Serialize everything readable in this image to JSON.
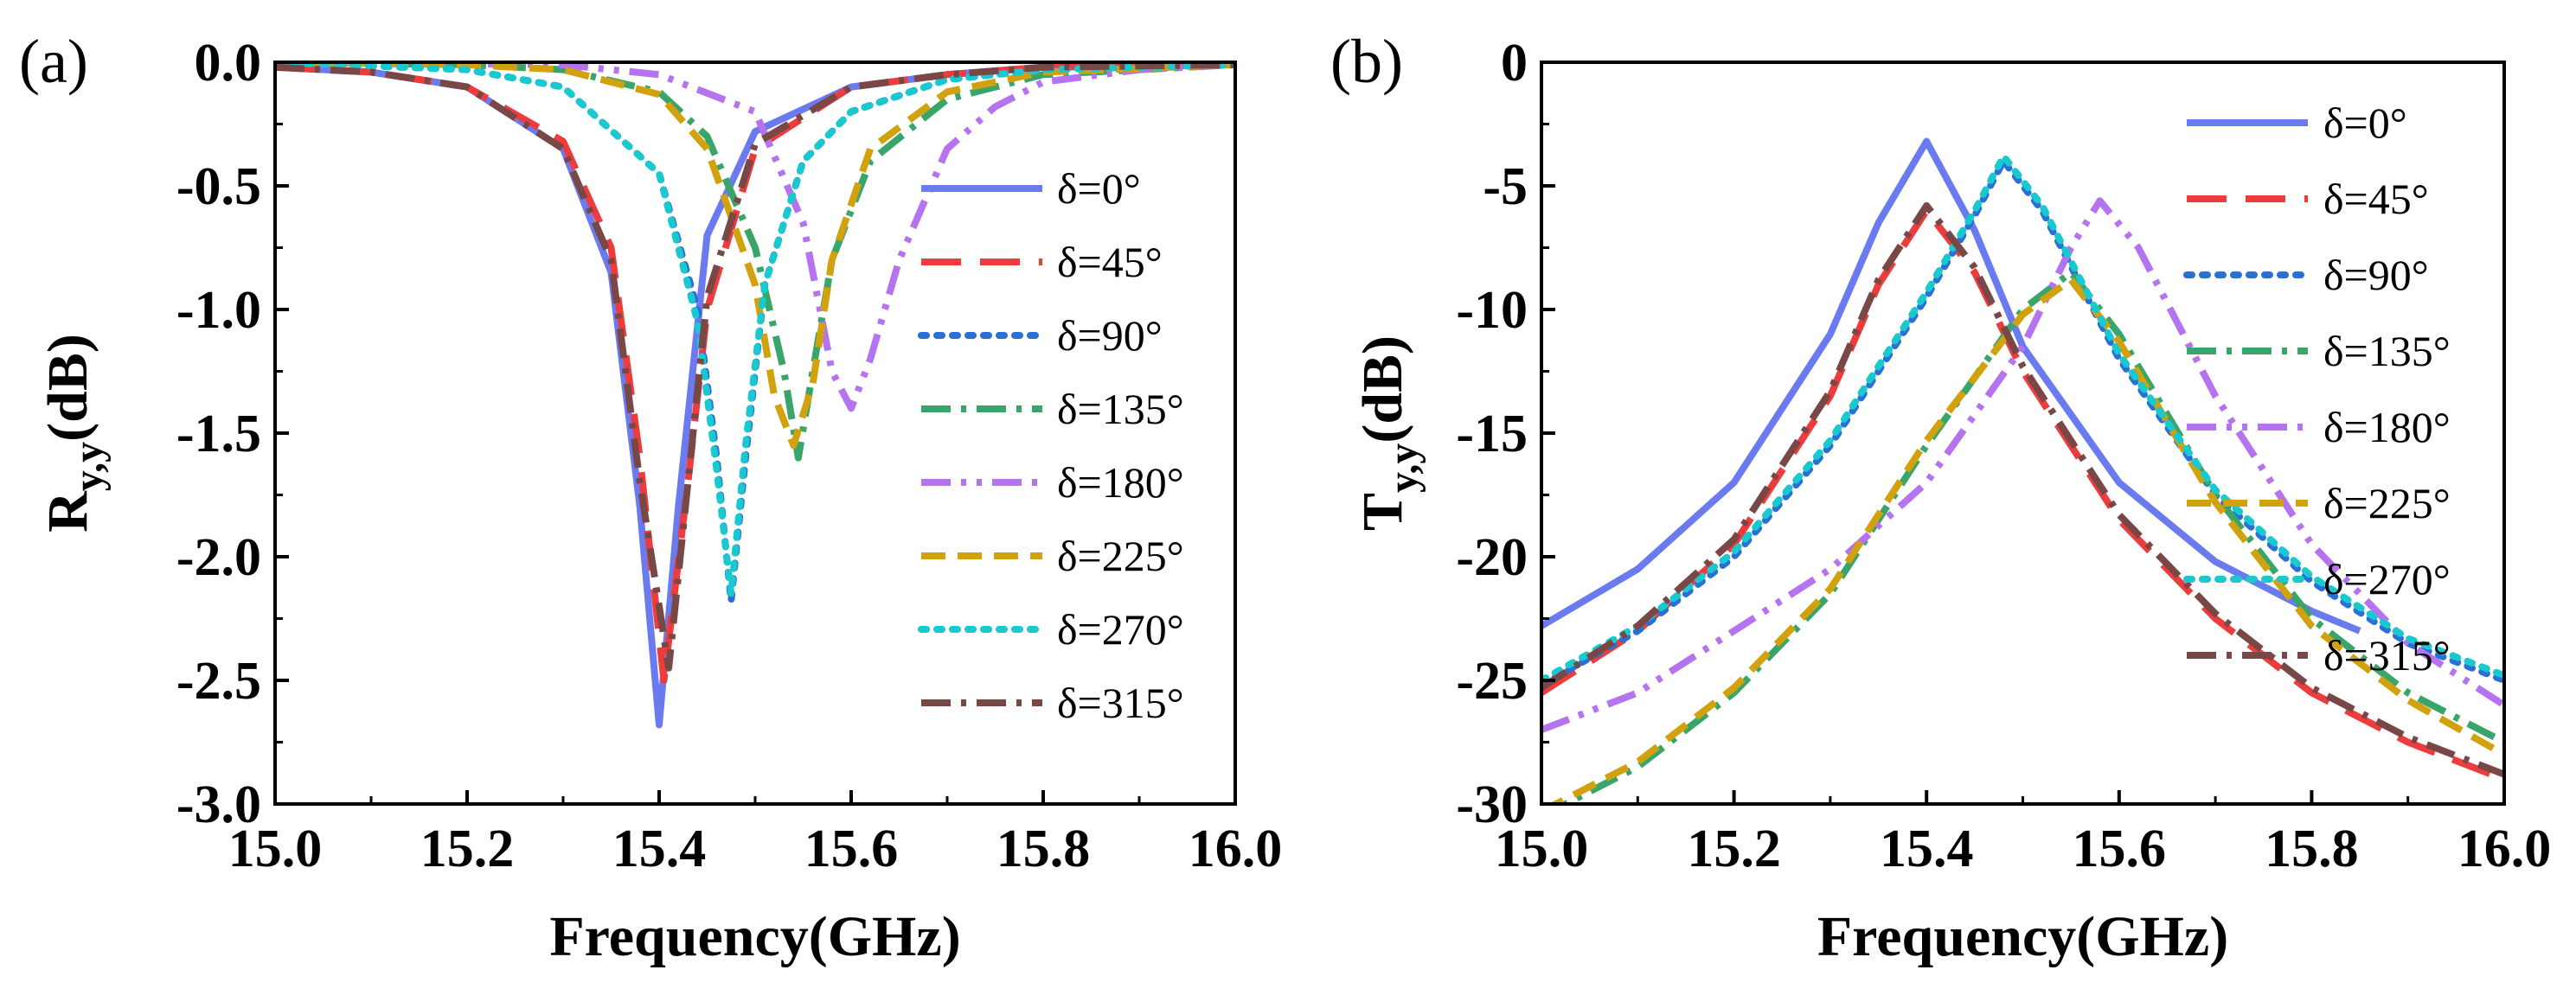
{
  "chart_data": [
    {
      "type": "line",
      "panel_label": "(a)",
      "xlabel": "Frequency(GHz)",
      "ylabel": "R",
      "ylabel_sub": "y,y",
      "ylabel_unit": "(dB)",
      "xlim": [
        15.0,
        16.0
      ],
      "ylim": [
        -3.0,
        0.0
      ],
      "xticks": [
        15.0,
        15.2,
        15.4,
        15.6,
        15.8,
        16.0
      ],
      "xtick_labels": [
        "15.0",
        "15.2",
        "15.4",
        "15.6",
        "15.8",
        "16.0"
      ],
      "yticks": [
        0.0,
        -0.5,
        -1.0,
        -1.5,
        -2.0,
        -2.5,
        -3.0
      ],
      "ytick_labels": [
        "0.0",
        "-0.5",
        "-1.0",
        "-1.5",
        "-2.0",
        "-2.5",
        "-3.0"
      ],
      "grid": false,
      "legend": "right",
      "series": [
        {
          "name": "δ=0°",
          "color": "#6a7bef",
          "dash": "solid",
          "x": [
            15.0,
            15.1,
            15.2,
            15.3,
            15.35,
            15.38,
            15.4,
            15.42,
            15.45,
            15.5,
            15.6,
            15.7,
            15.8,
            16.0
          ],
          "y": [
            -0.02,
            -0.04,
            -0.1,
            -0.35,
            -0.85,
            -1.8,
            -2.68,
            -1.8,
            -0.7,
            -0.28,
            -0.1,
            -0.05,
            -0.02,
            -0.01
          ]
        },
        {
          "name": "δ=45°",
          "color": "#ee3b3b",
          "dash": "long",
          "x": [
            15.0,
            15.1,
            15.2,
            15.3,
            15.35,
            15.38,
            15.405,
            15.43,
            15.45,
            15.5,
            15.6,
            15.7,
            15.8,
            16.0
          ],
          "y": [
            -0.02,
            -0.04,
            -0.1,
            -0.32,
            -0.75,
            -1.6,
            -2.5,
            -1.7,
            -1.0,
            -0.35,
            -0.1,
            -0.05,
            -0.02,
            -0.01
          ]
        },
        {
          "name": "δ=90°",
          "color": "#2a6fd6",
          "dash": "dot",
          "x": [
            15.0,
            15.2,
            15.3,
            15.4,
            15.44,
            15.46,
            15.475,
            15.49,
            15.51,
            15.55,
            15.6,
            15.7,
            15.8,
            16.0
          ],
          "y": [
            0.0,
            -0.03,
            -0.1,
            -0.45,
            -1.0,
            -1.6,
            -2.18,
            -1.6,
            -0.9,
            -0.4,
            -0.2,
            -0.07,
            -0.03,
            -0.01
          ]
        },
        {
          "name": "δ=135°",
          "color": "#3aa56a",
          "dash": "dashdot",
          "x": [
            15.0,
            15.2,
            15.3,
            15.4,
            15.45,
            15.5,
            15.53,
            15.545,
            15.56,
            15.58,
            15.62,
            15.7,
            15.8,
            16.0
          ],
          "y": [
            0.0,
            -0.01,
            -0.03,
            -0.12,
            -0.3,
            -0.75,
            -1.25,
            -1.6,
            -1.25,
            -0.8,
            -0.4,
            -0.15,
            -0.05,
            -0.01
          ]
        },
        {
          "name": "δ=180°",
          "color": "#b673f0",
          "dash": "dashdotdot",
          "x": [
            15.0,
            15.3,
            15.4,
            15.5,
            15.55,
            15.58,
            15.6,
            15.62,
            15.65,
            15.7,
            15.75,
            15.8,
            15.9,
            16.0
          ],
          "y": [
            0.0,
            -0.01,
            -0.05,
            -0.2,
            -0.65,
            -1.25,
            -1.4,
            -1.2,
            -0.8,
            -0.35,
            -0.18,
            -0.08,
            -0.03,
            -0.01
          ]
        },
        {
          "name": "δ=225°",
          "color": "#d1a20d",
          "dash": "dash",
          "x": [
            15.0,
            15.2,
            15.3,
            15.4,
            15.45,
            15.5,
            15.52,
            15.54,
            15.56,
            15.58,
            15.62,
            15.7,
            15.8,
            16.0
          ],
          "y": [
            0.0,
            -0.01,
            -0.03,
            -0.13,
            -0.35,
            -0.9,
            -1.35,
            -1.55,
            -1.3,
            -0.8,
            -0.35,
            -0.12,
            -0.04,
            -0.01
          ]
        },
        {
          "name": "δ=270°",
          "color": "#19c9cf",
          "dash": "dot",
          "x": [
            15.0,
            15.2,
            15.3,
            15.4,
            15.44,
            15.46,
            15.475,
            15.49,
            15.51,
            15.55,
            15.6,
            15.7,
            15.8,
            16.0
          ],
          "y": [
            0.0,
            -0.03,
            -0.1,
            -0.45,
            -1.05,
            -1.65,
            -2.15,
            -1.55,
            -0.9,
            -0.4,
            -0.2,
            -0.07,
            -0.03,
            -0.01
          ]
        },
        {
          "name": "δ=315°",
          "color": "#7a4747",
          "dash": "dashdot",
          "x": [
            15.0,
            15.1,
            15.2,
            15.3,
            15.35,
            15.38,
            15.41,
            15.43,
            15.45,
            15.5,
            15.6,
            15.7,
            15.8,
            16.0
          ],
          "y": [
            -0.02,
            -0.04,
            -0.1,
            -0.35,
            -0.8,
            -1.7,
            -2.45,
            -1.7,
            -0.95,
            -0.33,
            -0.1,
            -0.05,
            -0.02,
            -0.01
          ]
        }
      ]
    },
    {
      "type": "line",
      "panel_label": "(b)",
      "xlabel": "Frequency(GHz)",
      "ylabel": "T",
      "ylabel_sub": "y,y",
      "ylabel_unit": "(dB)",
      "xlim": [
        15.0,
        16.0
      ],
      "ylim": [
        -30,
        0
      ],
      "xticks": [
        15.0,
        15.2,
        15.4,
        15.6,
        15.8,
        16.0
      ],
      "xtick_labels": [
        "15.0",
        "15.2",
        "15.4",
        "15.6",
        "15.8",
        "16.0"
      ],
      "yticks": [
        0,
        -5,
        -10,
        -15,
        -20,
        -25,
        -30
      ],
      "ytick_labels": [
        "0",
        "-5",
        "-10",
        "-15",
        "-20",
        "-25",
        "-30"
      ],
      "grid": false,
      "legend": "top-right",
      "series": [
        {
          "name": "δ=0°",
          "color": "#6a7bef",
          "dash": "solid",
          "x": [
            15.0,
            15.1,
            15.2,
            15.3,
            15.35,
            15.4,
            15.45,
            15.5,
            15.6,
            15.7,
            15.8,
            15.85
          ],
          "y": [
            -22.8,
            -20.5,
            -17.0,
            -11.0,
            -6.5,
            -3.2,
            -6.8,
            -11.5,
            -17.0,
            -20.2,
            -22.2,
            -23.0
          ]
        },
        {
          "name": "δ=45°",
          "color": "#ee3b3b",
          "dash": "long",
          "x": [
            15.0,
            15.1,
            15.2,
            15.3,
            15.35,
            15.4,
            15.45,
            15.5,
            15.6,
            15.7,
            15.8,
            15.9,
            16.0
          ],
          "y": [
            -25.5,
            -23.0,
            -19.5,
            -13.5,
            -9.0,
            -6.0,
            -8.5,
            -12.5,
            -18.5,
            -22.5,
            -25.5,
            -27.5,
            -29.0
          ]
        },
        {
          "name": "δ=90°",
          "color": "#2a6fd6",
          "dash": "dot",
          "x": [
            15.0,
            15.1,
            15.2,
            15.3,
            15.4,
            15.45,
            15.48,
            15.52,
            15.6,
            15.7,
            15.8,
            15.9,
            16.0
          ],
          "y": [
            -25.2,
            -23.0,
            -20.0,
            -15.5,
            -9.5,
            -6.2,
            -4.0,
            -6.0,
            -12.0,
            -17.5,
            -21.0,
            -23.5,
            -25.0
          ]
        },
        {
          "name": "δ=135°",
          "color": "#3aa56a",
          "dash": "dashdot",
          "x": [
            15.0,
            15.1,
            15.2,
            15.3,
            15.4,
            15.5,
            15.55,
            15.6,
            15.7,
            15.8,
            15.9,
            16.0
          ],
          "y": [
            -30.5,
            -28.5,
            -25.5,
            -21.5,
            -15.5,
            -10.0,
            -8.5,
            -11.0,
            -17.5,
            -22.5,
            -25.5,
            -27.5
          ]
        },
        {
          "name": "δ=180°",
          "color": "#b673f0",
          "dash": "dashdotdot",
          "x": [
            15.0,
            15.1,
            15.2,
            15.3,
            15.4,
            15.5,
            15.55,
            15.58,
            15.62,
            15.7,
            15.8,
            15.9,
            16.0
          ],
          "y": [
            -27.0,
            -25.5,
            -23.0,
            -20.5,
            -17.0,
            -11.5,
            -7.5,
            -5.6,
            -7.5,
            -13.5,
            -19.5,
            -23.5,
            -26.0
          ]
        },
        {
          "name": "δ=225°",
          "color": "#d1a20d",
          "dash": "dash",
          "x": [
            15.0,
            15.1,
            15.2,
            15.3,
            15.4,
            15.5,
            15.55,
            15.6,
            15.7,
            15.8,
            15.9,
            16.0
          ],
          "y": [
            -30.3,
            -28.3,
            -25.3,
            -21.3,
            -15.3,
            -10.2,
            -8.8,
            -11.3,
            -17.8,
            -22.8,
            -25.8,
            -28.0
          ]
        },
        {
          "name": "δ=270°",
          "color": "#19c9cf",
          "dash": "dot",
          "x": [
            15.0,
            15.1,
            15.2,
            15.3,
            15.4,
            15.45,
            15.48,
            15.52,
            15.6,
            15.7,
            15.8,
            15.9,
            16.0
          ],
          "y": [
            -25.0,
            -22.8,
            -19.8,
            -15.3,
            -9.3,
            -6.0,
            -3.8,
            -5.8,
            -11.8,
            -17.3,
            -20.8,
            -23.3,
            -24.8
          ]
        },
        {
          "name": "δ=315°",
          "color": "#7a4747",
          "dash": "dashdot",
          "x": [
            15.0,
            15.1,
            15.2,
            15.3,
            15.35,
            15.4,
            15.45,
            15.5,
            15.6,
            15.7,
            15.8,
            15.9,
            16.0
          ],
          "y": [
            -25.3,
            -22.8,
            -19.3,
            -13.3,
            -8.8,
            -5.8,
            -8.3,
            -12.3,
            -18.3,
            -22.3,
            -25.3,
            -27.3,
            -28.8
          ]
        }
      ]
    }
  ]
}
